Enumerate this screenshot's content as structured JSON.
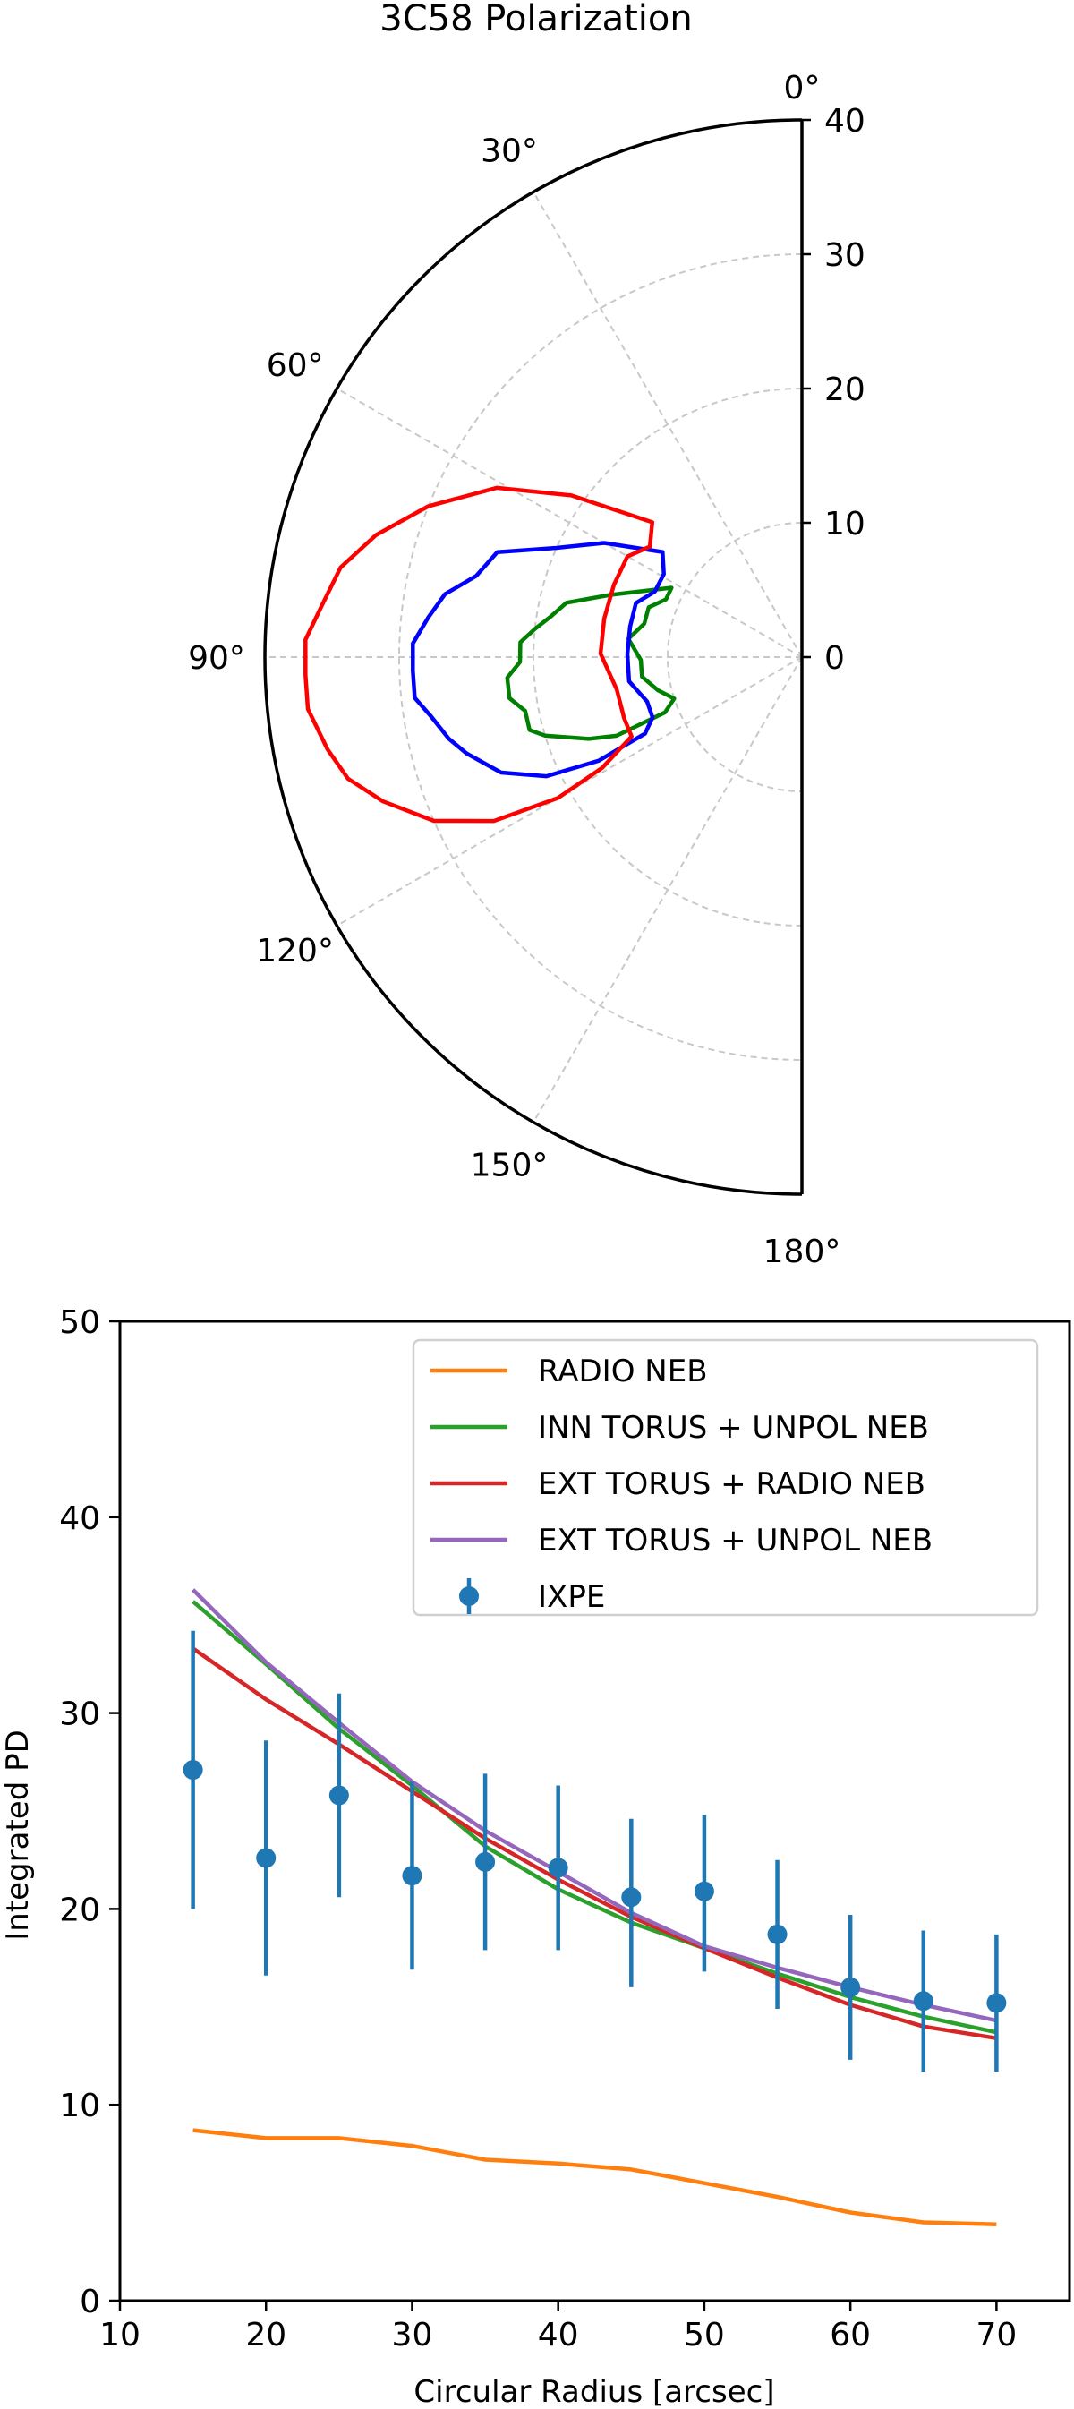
{
  "chart_data": [
    {
      "type": "polar",
      "title": "3C58 Polarization",
      "theta_ticks_deg": [
        0,
        30,
        60,
        90,
        120,
        150,
        180
      ],
      "theta_tick_labels": [
        "0°",
        "30°",
        "60°",
        "90°",
        "120°",
        "150°",
        "180°"
      ],
      "r_ticks": [
        0,
        10,
        20,
        30,
        40
      ],
      "r_tick_labels": [
        "0",
        "10",
        "20",
        "30",
        "40"
      ],
      "r_range": [
        0,
        40
      ],
      "theta_range_deg": [
        0,
        180
      ],
      "grid": true,
      "contours": [
        {
          "color": "#008000",
          "points": [
            [
              62,
              11
            ],
            [
              72,
              15
            ],
            [
              77,
              18
            ],
            [
              81,
              19
            ],
            [
              84,
              20
            ],
            [
              87,
              21
            ],
            [
              91,
              21
            ],
            [
              94,
              22
            ],
            [
              98,
              22
            ],
            [
              101,
              21
            ],
            [
              105,
              21
            ],
            [
              107,
              20
            ],
            [
              111,
              17
            ],
            [
              113,
              15
            ],
            [
              112,
              11
            ],
            [
              108,
              10
            ],
            [
              103,
              11
            ],
            [
              97,
              12
            ],
            [
              91,
              12
            ],
            [
              84,
              13
            ],
            [
              78,
              12
            ],
            [
              72,
              12
            ],
            [
              67,
              11
            ],
            [
              62,
              11
            ]
          ]
        },
        {
          "color": "#0000ff",
          "points": [
            [
              53,
              13
            ],
            [
              60,
              17
            ],
            [
              66,
              20
            ],
            [
              71,
              24
            ],
            [
              76,
              25
            ],
            [
              80,
              27
            ],
            [
              84,
              28
            ],
            [
              88,
              29
            ],
            [
              92,
              29
            ],
            [
              96,
              29
            ],
            [
              99,
              28
            ],
            [
              103,
              27
            ],
            [
              106,
              26
            ],
            [
              111,
              24
            ],
            [
              115,
              21
            ],
            [
              117,
              17
            ],
            [
              116,
              13
            ],
            [
              112,
              12
            ],
            [
              106,
              12
            ],
            [
              98,
              13
            ],
            [
              89,
              13
            ],
            [
              80,
              13
            ],
            [
              72,
              13
            ],
            [
              66,
              12
            ],
            [
              59,
              12
            ],
            [
              53,
              13
            ]
          ]
        },
        {
          "color": "#ff0000",
          "points": [
            [
              48,
              15
            ],
            [
              55,
              21
            ],
            [
              61,
              26
            ],
            [
              68,
              30
            ],
            [
              74,
              33
            ],
            [
              79,
              35
            ],
            [
              84,
              36
            ],
            [
              88,
              37
            ],
            [
              92,
              37
            ],
            [
              96,
              37
            ],
            [
              101,
              36
            ],
            [
              105,
              35
            ],
            [
              109,
              33
            ],
            [
              114,
              30
            ],
            [
              118,
              26
            ],
            [
              120,
              21
            ],
            [
              119,
              17
            ],
            [
              115,
              14
            ],
            [
              109,
              14
            ],
            [
              100,
              14
            ],
            [
              89,
              15
            ],
            [
              79,
              15
            ],
            [
              69,
              15
            ],
            [
              60,
              15
            ],
            [
              54,
              14
            ],
            [
              48,
              15
            ]
          ]
        }
      ]
    },
    {
      "type": "line",
      "xlabel": "Circular Radius [arcsec]",
      "ylabel": "Integrated PD",
      "xlim": [
        10,
        75
      ],
      "ylim": [
        0,
        50
      ],
      "xticks": [
        10,
        20,
        30,
        40,
        50,
        60,
        70
      ],
      "yticks": [
        0,
        10,
        20,
        30,
        40,
        50
      ],
      "legend_position": "top-right",
      "x": [
        15,
        20,
        25,
        30,
        35,
        40,
        45,
        50,
        55,
        60,
        65,
        70
      ],
      "series": [
        {
          "name": "RADIO NEB",
          "color": "#ff7f0e",
          "values": [
            8.7,
            8.3,
            8.3,
            7.9,
            7.2,
            7.0,
            6.7,
            6.0,
            5.3,
            4.5,
            4.0,
            3.9
          ]
        },
        {
          "name": "INN TORUS + UNPOL NEB",
          "color": "#2ca02c",
          "values": [
            35.7,
            32.5,
            29.2,
            26.3,
            23.2,
            21.0,
            19.3,
            18.0,
            16.7,
            15.5,
            14.5,
            13.7
          ]
        },
        {
          "name": "EXT TORUS + RADIO NEB",
          "color": "#d62728",
          "values": [
            33.3,
            30.7,
            28.4,
            26.0,
            23.6,
            21.5,
            19.6,
            18.0,
            16.5,
            15.1,
            14.0,
            13.4
          ]
        },
        {
          "name": "EXT TORUS + UNPOL NEB",
          "color": "#9467bd",
          "values": [
            36.3,
            32.6,
            29.5,
            26.5,
            24.0,
            21.9,
            19.8,
            18.1,
            17.0,
            16.0,
            15.1,
            14.3
          ]
        }
      ],
      "errorbar_series": {
        "name": "IXPE",
        "color": "#1f77b4",
        "values": [
          27.1,
          22.6,
          25.8,
          21.7,
          22.4,
          22.1,
          20.6,
          20.9,
          18.7,
          16.0,
          15.3,
          15.2
        ],
        "err_low": [
          7.1,
          6.0,
          5.2,
          4.8,
          4.5,
          4.2,
          4.6,
          4.1,
          3.8,
          3.7,
          3.6,
          3.5
        ],
        "err_high": [
          7.1,
          6.0,
          5.2,
          4.8,
          4.5,
          4.2,
          4.0,
          3.9,
          3.8,
          3.7,
          3.6,
          3.5
        ]
      }
    }
  ]
}
